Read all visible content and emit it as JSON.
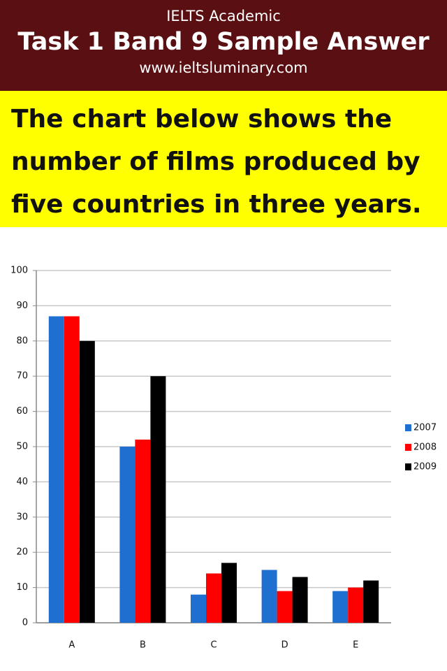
{
  "header": {
    "subtitle": "IELTS Academic",
    "title": "Task 1 Band 9 Sample Answer",
    "url": "www.ieltsluminary.com"
  },
  "prompt": [
    "The chart below shows the",
    "number of films produced by",
    "five countries in three years."
  ],
  "chart_data": {
    "type": "bar",
    "categories": [
      "A",
      "B",
      "C",
      "D",
      "E"
    ],
    "series": [
      {
        "name": "2007",
        "color": "#1f6fd1",
        "values": [
          87,
          50,
          8,
          15,
          9
        ]
      },
      {
        "name": "2008",
        "color": "#ff0000",
        "values": [
          87,
          52,
          14,
          9,
          10
        ]
      },
      {
        "name": "2009",
        "color": "#000000",
        "values": [
          80,
          70,
          17,
          13,
          12
        ]
      }
    ],
    "ylim": [
      0,
      100
    ],
    "yticks": [
      0,
      10,
      20,
      30,
      40,
      50,
      60,
      70,
      80,
      90,
      100
    ],
    "grid": true,
    "legend": "right"
  }
}
